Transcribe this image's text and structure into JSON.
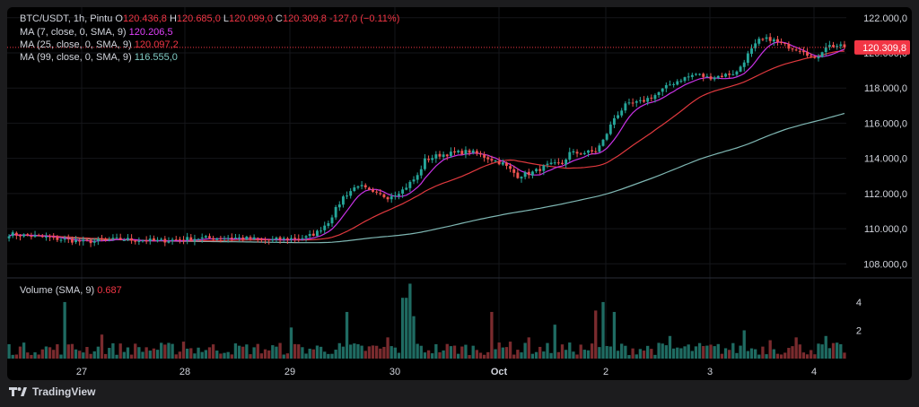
{
  "header": {
    "symbol": "BTC/USDT, 1h, Pintu",
    "o_label": "O",
    "o_value": "120.436,8",
    "h_label": "H",
    "h_value": "120.685,0",
    "l_label": "L",
    "l_value": "120.099,0",
    "c_label": "C",
    "c_value": "120.309,8",
    "change": "-127,0 (−0.11%)"
  },
  "ma_legend": [
    {
      "label": "MA (7, close, 0, SMA, 9)",
      "value": "120.206,5",
      "color": "#e040fb"
    },
    {
      "label": "MA (25, close, 0, SMA, 9)",
      "value": "120.097,2",
      "color": "#f23645"
    },
    {
      "label": "MA (99, close, 0, SMA, 9)",
      "value": "116.555,0",
      "color": "#80cbc4"
    }
  ],
  "volume_legend": {
    "label": "Volume (SMA, 9)",
    "value": "0.687"
  },
  "price_tag": "120.309,8",
  "volume_tag": "0.687",
  "footer": {
    "brand": "TradingView"
  },
  "colors": {
    "up": "#26a69a",
    "down": "#ef5350",
    "up_vol": "#1f6b62",
    "down_vol": "#7a2b2e",
    "ma7": "#c832e6",
    "ma25": "#e0393e",
    "ma99": "#7fb7b3",
    "tag": "#f23645"
  },
  "chart_data": {
    "type": "candlestick",
    "timeframe": "1h",
    "x_ticks": [
      "27",
      "28",
      "29",
      "30",
      "Oct",
      "2",
      "3",
      "4"
    ],
    "price_axis_ticks": [
      "122.000,0",
      "120.000,0",
      "118.000,0",
      "116.000,0",
      "114.000,0",
      "112.000,0",
      "110.000,0",
      "108.000,0"
    ],
    "price_range": [
      107200,
      122600
    ],
    "volume_axis_ticks": [
      "4",
      "2"
    ],
    "volume_range": [
      0,
      5.2
    ],
    "price_anchors": [
      [
        0,
        109700
      ],
      [
        10,
        109500
      ],
      [
        20,
        109250
      ],
      [
        30,
        109400
      ],
      [
        40,
        109300
      ],
      [
        50,
        109450
      ],
      [
        60,
        109500
      ],
      [
        70,
        109350
      ],
      [
        80,
        109500
      ],
      [
        83,
        109800
      ],
      [
        86,
        110400
      ],
      [
        90,
        111800
      ],
      [
        94,
        112500
      ],
      [
        98,
        112000
      ],
      [
        102,
        111800
      ],
      [
        106,
        112200
      ],
      [
        110,
        113000
      ],
      [
        112,
        113900
      ],
      [
        116,
        114200
      ],
      [
        120,
        114300
      ],
      [
        124,
        114400
      ],
      [
        128,
        114100
      ],
      [
        133,
        113700
      ],
      [
        137,
        113000
      ],
      [
        141,
        113200
      ],
      [
        145,
        113600
      ],
      [
        149,
        113700
      ],
      [
        151,
        114300
      ],
      [
        154,
        114300
      ],
      [
        158,
        114400
      ],
      [
        160,
        115000
      ],
      [
        163,
        116300
      ],
      [
        166,
        117000
      ],
      [
        170,
        117200
      ],
      [
        174,
        117600
      ],
      [
        178,
        118200
      ],
      [
        181,
        118500
      ],
      [
        185,
        118800
      ],
      [
        188,
        118600
      ],
      [
        192,
        118700
      ],
      [
        196,
        118900
      ],
      [
        199,
        119900
      ],
      [
        202,
        120700
      ],
      [
        205,
        120800
      ],
      [
        208,
        120500
      ],
      [
        211,
        120300
      ],
      [
        214,
        120150
      ],
      [
        217,
        119600
      ],
      [
        220,
        120400
      ],
      [
        223,
        120400
      ],
      [
        225,
        120310
      ]
    ],
    "ma7_last": 120206.5,
    "ma25_last": 120097.2,
    "ma99_last": 116555.0,
    "last_close": 120309.8,
    "volume_spikes": [
      {
        "i": 15,
        "v": 4.0
      },
      {
        "i": 25,
        "v": 1.7
      },
      {
        "i": 47,
        "v": 1.2
      },
      {
        "i": 76,
        "v": 2.2
      },
      {
        "i": 91,
        "v": 3.3
      },
      {
        "i": 102,
        "v": 1.5
      },
      {
        "i": 106,
        "v": 4.3
      },
      {
        "i": 107,
        "v": 4.3
      },
      {
        "i": 108,
        "v": 5.3
      },
      {
        "i": 109,
        "v": 3.0
      },
      {
        "i": 130,
        "v": 3.3
      },
      {
        "i": 135,
        "v": 1.2
      },
      {
        "i": 140,
        "v": 1.5
      },
      {
        "i": 147,
        "v": 2.4
      },
      {
        "i": 158,
        "v": 3.4
      },
      {
        "i": 160,
        "v": 4.0
      },
      {
        "i": 163,
        "v": 3.3
      },
      {
        "i": 178,
        "v": 1.6
      },
      {
        "i": 198,
        "v": 2.0
      },
      {
        "i": 205,
        "v": 1.3
      },
      {
        "i": 212,
        "v": 1.5
      },
      {
        "i": 220,
        "v": 1.6
      }
    ]
  }
}
